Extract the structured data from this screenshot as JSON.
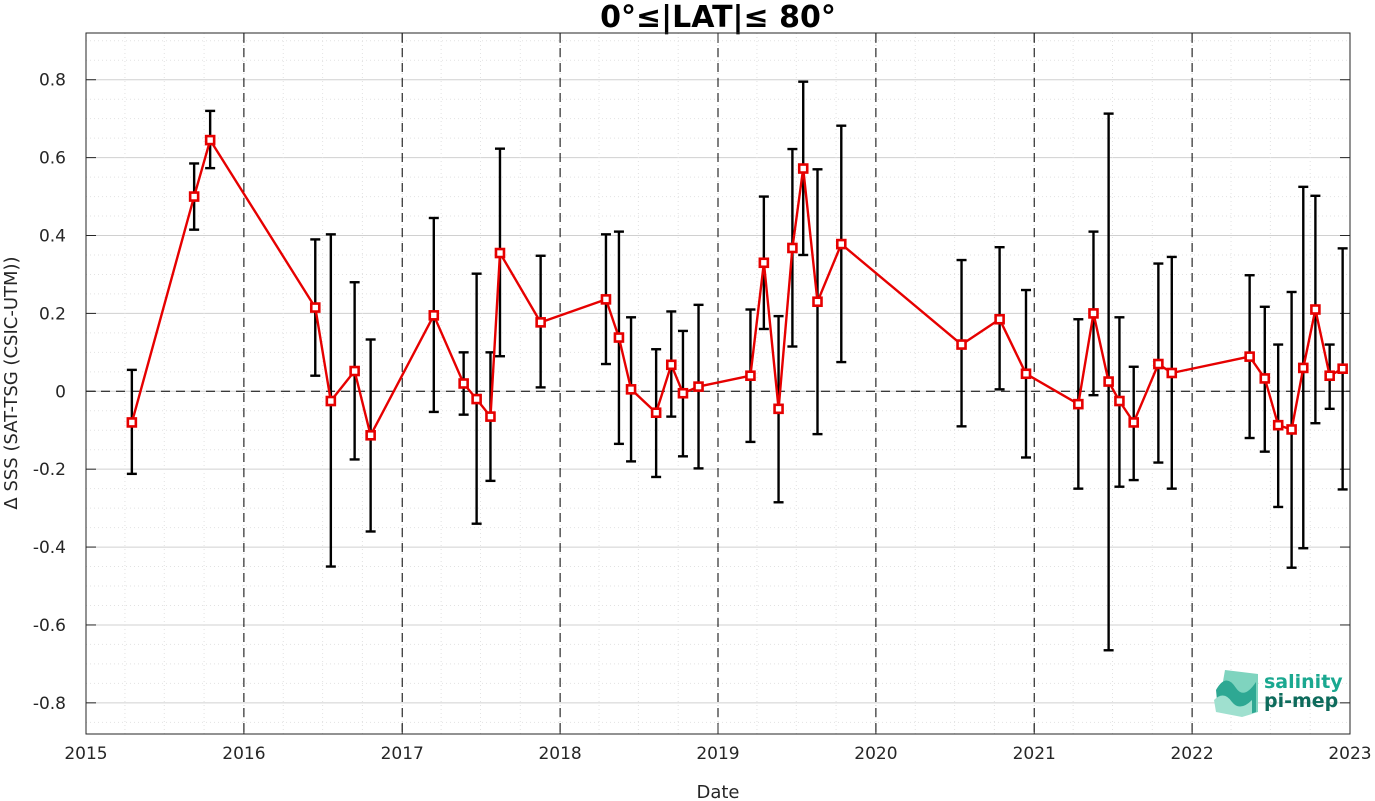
{
  "chart_data": {
    "type": "line",
    "title": "0°≤|LAT|≤ 80°",
    "xlabel": "Date",
    "ylabel": "Δ SSS (SAT-TSG (CSIC-UTM))",
    "xlim": [
      "2015-01-01",
      "2023-01-01"
    ],
    "ylim": [
      -0.88,
      0.92
    ],
    "x_ticks": [
      "2015",
      "2016",
      "2017",
      "2018",
      "2019",
      "2020",
      "2021",
      "2022",
      "2023"
    ],
    "y_ticks": [
      -0.8,
      -0.6,
      -0.4,
      -0.2,
      0,
      0.2,
      0.4,
      0.6,
      0.8
    ],
    "y_tick_labels": [
      "-0.8",
      "-0.6",
      "-0.4",
      "-0.2",
      "0",
      "0.2",
      "0.4",
      "0.6",
      "0.8"
    ],
    "grid": "dotted major and minor",
    "year_dividers": [
      "2016",
      "2017",
      "2018",
      "2019",
      "2020",
      "2021",
      "2022"
    ],
    "zero_line": true,
    "colors": {
      "series": "#e60000",
      "errorbar": "#000000",
      "brand": "#1a9e8a"
    },
    "series": [
      {
        "x": [
          "2015-04-17",
          "2015-09-08",
          "2015-10-15",
          "2016-06-14",
          "2016-07-20",
          "2016-09-13",
          "2016-10-20",
          "2017-03-15",
          "2017-05-23",
          "2017-06-22",
          "2017-07-24",
          "2017-08-15",
          "2017-11-17",
          "2018-04-17",
          "2018-05-17",
          "2018-06-14",
          "2018-08-11",
          "2018-09-15",
          "2018-10-12",
          "2018-11-17",
          "2019-03-17",
          "2019-04-17",
          "2019-05-21",
          "2019-06-22",
          "2019-07-17",
          "2019-08-19",
          "2019-10-13",
          "2020-07-17",
          "2020-10-13",
          "2020-12-13",
          "2021-04-13",
          "2021-05-18",
          "2021-06-22",
          "2021-07-17",
          "2021-08-19",
          "2021-10-15",
          "2021-11-15",
          "2022-05-14",
          "2022-06-18",
          "2022-07-19",
          "2022-08-19",
          "2022-09-15",
          "2022-10-13",
          "2022-11-15",
          "2022-12-15"
        ],
        "values": [
          -0.08,
          0.5,
          0.645,
          0.215,
          -0.025,
          0.052,
          -0.113,
          0.195,
          0.02,
          -0.02,
          -0.065,
          0.355,
          0.177,
          0.236,
          0.138,
          0.005,
          -0.055,
          0.068,
          -0.005,
          0.012,
          0.04,
          0.33,
          -0.045,
          0.368,
          0.572,
          0.23,
          0.378,
          0.12,
          0.185,
          0.045,
          -0.033,
          0.2,
          0.025,
          -0.025,
          -0.08,
          0.07,
          0.047,
          0.089,
          0.033,
          -0.087,
          -0.098,
          0.06,
          0.21,
          0.04,
          0.058
        ],
        "err_low": [
          -0.212,
          0.415,
          0.573,
          0.04,
          -0.45,
          -0.175,
          -0.36,
          -0.053,
          -0.06,
          -0.34,
          -0.23,
          0.09,
          0.01,
          0.07,
          -0.135,
          -0.18,
          -0.22,
          -0.065,
          -0.167,
          -0.198,
          -0.13,
          0.16,
          -0.285,
          0.115,
          0.35,
          -0.11,
          0.075,
          -0.09,
          0.005,
          -0.17,
          -0.25,
          -0.01,
          -0.665,
          -0.245,
          -0.228,
          -0.183,
          -0.25,
          -0.12,
          -0.155,
          -0.297,
          -0.453,
          -0.403,
          -0.082,
          -0.045,
          -0.252
        ],
        "err_high": [
          0.055,
          0.585,
          0.72,
          0.39,
          0.403,
          0.28,
          0.133,
          0.445,
          0.1,
          0.302,
          0.1,
          0.623,
          0.348,
          0.403,
          0.41,
          0.19,
          0.108,
          0.205,
          0.155,
          0.222,
          0.21,
          0.5,
          0.193,
          0.622,
          0.795,
          0.57,
          0.682,
          0.337,
          0.37,
          0.26,
          0.185,
          0.41,
          0.713,
          0.19,
          0.063,
          0.328,
          0.345,
          0.298,
          0.217,
          0.12,
          0.255,
          0.525,
          0.502,
          0.12,
          0.367
        ]
      }
    ]
  },
  "logo": {
    "line1": "salinity",
    "line2": "pi-mep"
  }
}
